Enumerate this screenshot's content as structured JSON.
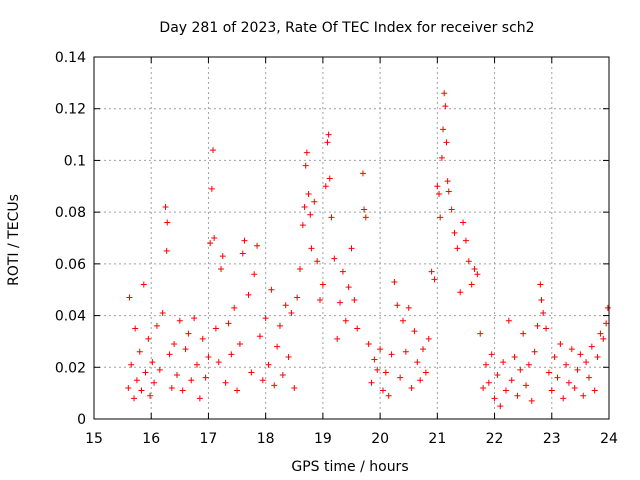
{
  "chart_data": {
    "type": "scatter",
    "title": "Day 281 of 2023, Rate Of TEC Index for receiver sch2",
    "xlabel": "GPS time / hours",
    "ylabel": "ROTI / TECUs",
    "xlim": [
      15,
      24
    ],
    "ylim": [
      0,
      0.14
    ],
    "x_ticks": [
      "15",
      "16",
      "17",
      "18",
      "19",
      "20",
      "21",
      "22",
      "23",
      "24"
    ],
    "y_ticks": [
      "0",
      "0.02",
      "0.04",
      "0.06",
      "0.08",
      "0.1",
      "0.12",
      "0.14"
    ],
    "grid": true,
    "marker": "+",
    "marker_color": "#ff0000",
    "series": [
      {
        "points": [
          [
            15.6,
            0.012
          ],
          [
            15.62,
            0.047
          ],
          [
            15.65,
            0.021
          ],
          [
            15.7,
            0.008
          ],
          [
            15.72,
            0.035
          ],
          [
            15.75,
            0.015
          ],
          [
            15.8,
            0.026
          ],
          [
            15.83,
            0.011
          ],
          [
            15.87,
            0.052
          ],
          [
            15.9,
            0.018
          ],
          [
            15.95,
            0.031
          ],
          [
            15.98,
            0.009
          ],
          [
            16.02,
            0.022
          ],
          [
            16.05,
            0.014
          ],
          [
            16.1,
            0.036
          ],
          [
            16.15,
            0.019
          ],
          [
            16.2,
            0.041
          ],
          [
            16.25,
            0.082
          ],
          [
            16.27,
            0.065
          ],
          [
            16.28,
            0.076
          ],
          [
            16.32,
            0.025
          ],
          [
            16.36,
            0.012
          ],
          [
            16.4,
            0.029
          ],
          [
            16.45,
            0.017
          ],
          [
            16.5,
            0.038
          ],
          [
            16.55,
            0.011
          ],
          [
            16.6,
            0.027
          ],
          [
            16.65,
            0.033
          ],
          [
            16.7,
            0.015
          ],
          [
            16.75,
            0.039
          ],
          [
            16.8,
            0.021
          ],
          [
            16.85,
            0.008
          ],
          [
            16.9,
            0.031
          ],
          [
            16.95,
            0.016
          ],
          [
            17.0,
            0.024
          ],
          [
            17.03,
            0.068
          ],
          [
            17.06,
            0.089
          ],
          [
            17.08,
            0.104
          ],
          [
            17.1,
            0.07
          ],
          [
            17.13,
            0.035
          ],
          [
            17.18,
            0.022
          ],
          [
            17.22,
            0.058
          ],
          [
            17.25,
            0.063
          ],
          [
            17.3,
            0.014
          ],
          [
            17.35,
            0.037
          ],
          [
            17.4,
            0.025
          ],
          [
            17.45,
            0.043
          ],
          [
            17.5,
            0.011
          ],
          [
            17.55,
            0.029
          ],
          [
            17.6,
            0.064
          ],
          [
            17.63,
            0.069
          ],
          [
            17.7,
            0.048
          ],
          [
            17.75,
            0.018
          ],
          [
            17.8,
            0.056
          ],
          [
            17.85,
            0.067
          ],
          [
            17.9,
            0.032
          ],
          [
            17.95,
            0.015
          ],
          [
            18.0,
            0.039
          ],
          [
            18.05,
            0.021
          ],
          [
            18.1,
            0.05
          ],
          [
            18.15,
            0.013
          ],
          [
            18.2,
            0.028
          ],
          [
            18.25,
            0.036
          ],
          [
            18.3,
            0.017
          ],
          [
            18.35,
            0.044
          ],
          [
            18.4,
            0.024
          ],
          [
            18.45,
            0.041
          ],
          [
            18.5,
            0.012
          ],
          [
            18.55,
            0.047
          ],
          [
            18.6,
            0.058
          ],
          [
            18.65,
            0.075
          ],
          [
            18.68,
            0.082
          ],
          [
            18.7,
            0.098
          ],
          [
            18.72,
            0.103
          ],
          [
            18.75,
            0.087
          ],
          [
            18.78,
            0.079
          ],
          [
            18.8,
            0.066
          ],
          [
            18.85,
            0.084
          ],
          [
            18.9,
            0.061
          ],
          [
            18.95,
            0.046
          ],
          [
            19.0,
            0.052
          ],
          [
            19.05,
            0.09
          ],
          [
            19.08,
            0.107
          ],
          [
            19.1,
            0.11
          ],
          [
            19.12,
            0.093
          ],
          [
            19.15,
            0.078
          ],
          [
            19.2,
            0.062
          ],
          [
            19.25,
            0.031
          ],
          [
            19.3,
            0.045
          ],
          [
            19.35,
            0.057
          ],
          [
            19.4,
            0.038
          ],
          [
            19.45,
            0.051
          ],
          [
            19.5,
            0.066
          ],
          [
            19.55,
            0.046
          ],
          [
            19.6,
            0.035
          ],
          [
            19.7,
            0.095
          ],
          [
            19.72,
            0.081
          ],
          [
            19.75,
            0.078
          ],
          [
            19.8,
            0.029
          ],
          [
            19.85,
            0.014
          ],
          [
            19.9,
            0.023
          ],
          [
            19.95,
            0.019
          ],
          [
            20.0,
            0.027
          ],
          [
            20.05,
            0.011
          ],
          [
            20.1,
            0.018
          ],
          [
            20.15,
            0.009
          ],
          [
            20.2,
            0.025
          ],
          [
            20.25,
            0.053
          ],
          [
            20.3,
            0.044
          ],
          [
            20.35,
            0.016
          ],
          [
            20.4,
            0.038
          ],
          [
            20.45,
            0.026
          ],
          [
            20.5,
            0.043
          ],
          [
            20.55,
            0.012
          ],
          [
            20.6,
            0.034
          ],
          [
            20.65,
            0.022
          ],
          [
            20.7,
            0.015
          ],
          [
            20.75,
            0.027
          ],
          [
            20.8,
            0.018
          ],
          [
            20.85,
            0.031
          ],
          [
            20.9,
            0.057
          ],
          [
            20.95,
            0.054
          ],
          [
            21.0,
            0.09
          ],
          [
            21.03,
            0.087
          ],
          [
            21.05,
            0.078
          ],
          [
            21.08,
            0.101
          ],
          [
            21.1,
            0.112
          ],
          [
            21.12,
            0.126
          ],
          [
            21.14,
            0.121
          ],
          [
            21.16,
            0.107
          ],
          [
            21.18,
            0.092
          ],
          [
            21.2,
            0.088
          ],
          [
            21.25,
            0.081
          ],
          [
            21.3,
            0.072
          ],
          [
            21.35,
            0.066
          ],
          [
            21.4,
            0.049
          ],
          [
            21.45,
            0.076
          ],
          [
            21.5,
            0.069
          ],
          [
            21.55,
            0.061
          ],
          [
            21.6,
            0.052
          ],
          [
            21.65,
            0.058
          ],
          [
            21.7,
            0.056
          ],
          [
            21.75,
            0.033
          ],
          [
            21.8,
            0.012
          ],
          [
            21.85,
            0.021
          ],
          [
            21.9,
            0.014
          ],
          [
            21.95,
            0.025
          ],
          [
            22.0,
            0.008
          ],
          [
            22.05,
            0.017
          ],
          [
            22.1,
            0.005
          ],
          [
            22.15,
            0.022
          ],
          [
            22.2,
            0.011
          ],
          [
            22.25,
            0.038
          ],
          [
            22.3,
            0.015
          ],
          [
            22.35,
            0.024
          ],
          [
            22.4,
            0.009
          ],
          [
            22.45,
            0.019
          ],
          [
            22.5,
            0.033
          ],
          [
            22.55,
            0.013
          ],
          [
            22.6,
            0.021
          ],
          [
            22.65,
            0.007
          ],
          [
            22.7,
            0.026
          ],
          [
            22.75,
            0.036
          ],
          [
            22.8,
            0.052
          ],
          [
            22.82,
            0.046
          ],
          [
            22.85,
            0.041
          ],
          [
            22.9,
            0.035
          ],
          [
            22.95,
            0.018
          ],
          [
            23.0,
            0.011
          ],
          [
            23.05,
            0.024
          ],
          [
            23.1,
            0.016
          ],
          [
            23.15,
            0.029
          ],
          [
            23.2,
            0.008
          ],
          [
            23.25,
            0.021
          ],
          [
            23.3,
            0.014
          ],
          [
            23.35,
            0.027
          ],
          [
            23.4,
            0.012
          ],
          [
            23.45,
            0.019
          ],
          [
            23.5,
            0.025
          ],
          [
            23.55,
            0.009
          ],
          [
            23.6,
            0.022
          ],
          [
            23.65,
            0.016
          ],
          [
            23.7,
            0.028
          ],
          [
            23.75,
            0.011
          ],
          [
            23.8,
            0.024
          ],
          [
            23.85,
            0.033
          ],
          [
            23.9,
            0.031
          ],
          [
            23.95,
            0.037
          ],
          [
            23.98,
            0.043
          ]
        ]
      }
    ]
  }
}
